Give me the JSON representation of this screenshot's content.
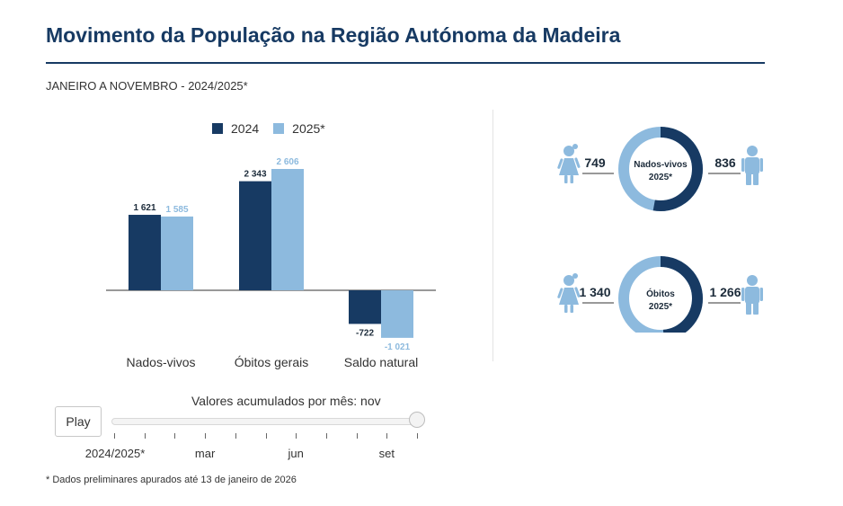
{
  "title": "Movimento da População na Região Autónoma da Madeira",
  "subtitle": "JANEIRO A NOVEMBRO - 2024/2025*",
  "colors": {
    "dark": "#173a63",
    "light": "#8dbade",
    "accent": "#173a63"
  },
  "legend": {
    "s2024": "2024",
    "s2025": "2025*"
  },
  "chart_data": {
    "type": "bar",
    "categories": [
      "Nados-vivos",
      "Óbitos gerais",
      "Saldo natural"
    ],
    "series": [
      {
        "name": "2024",
        "values": [
          1621,
          2343,
          -722
        ],
        "labels": [
          "1 621",
          "2 343",
          "-722"
        ]
      },
      {
        "name": "2025*",
        "values": [
          1585,
          2606,
          -1021
        ],
        "labels": [
          "1 585",
          "2 606",
          "-1 021"
        ]
      }
    ],
    "ylim": [
      -1100,
      2700
    ],
    "title": "",
    "xlabel": "",
    "ylabel": ""
  },
  "donuts": [
    {
      "label_line1": "Nados-vivos",
      "label_line2": "2025*",
      "female": "749",
      "male": "836",
      "female_value": 749,
      "male_value": 836
    },
    {
      "label_line1": "Óbitos",
      "label_line2": "2025*",
      "female": "1 340",
      "male": "1 266",
      "female_value": 1340,
      "male_value": 1266
    }
  ],
  "slider": {
    "play_label": "Play",
    "caption": "Valores acumulados por mês: nov",
    "tick_labels": [
      "2024/2025*",
      "mar",
      "jun",
      "set"
    ],
    "selected_index": 10,
    "total_steps": 11
  },
  "footnote": "* Dados preliminares apurados até 13 de janeiro de 2026"
}
